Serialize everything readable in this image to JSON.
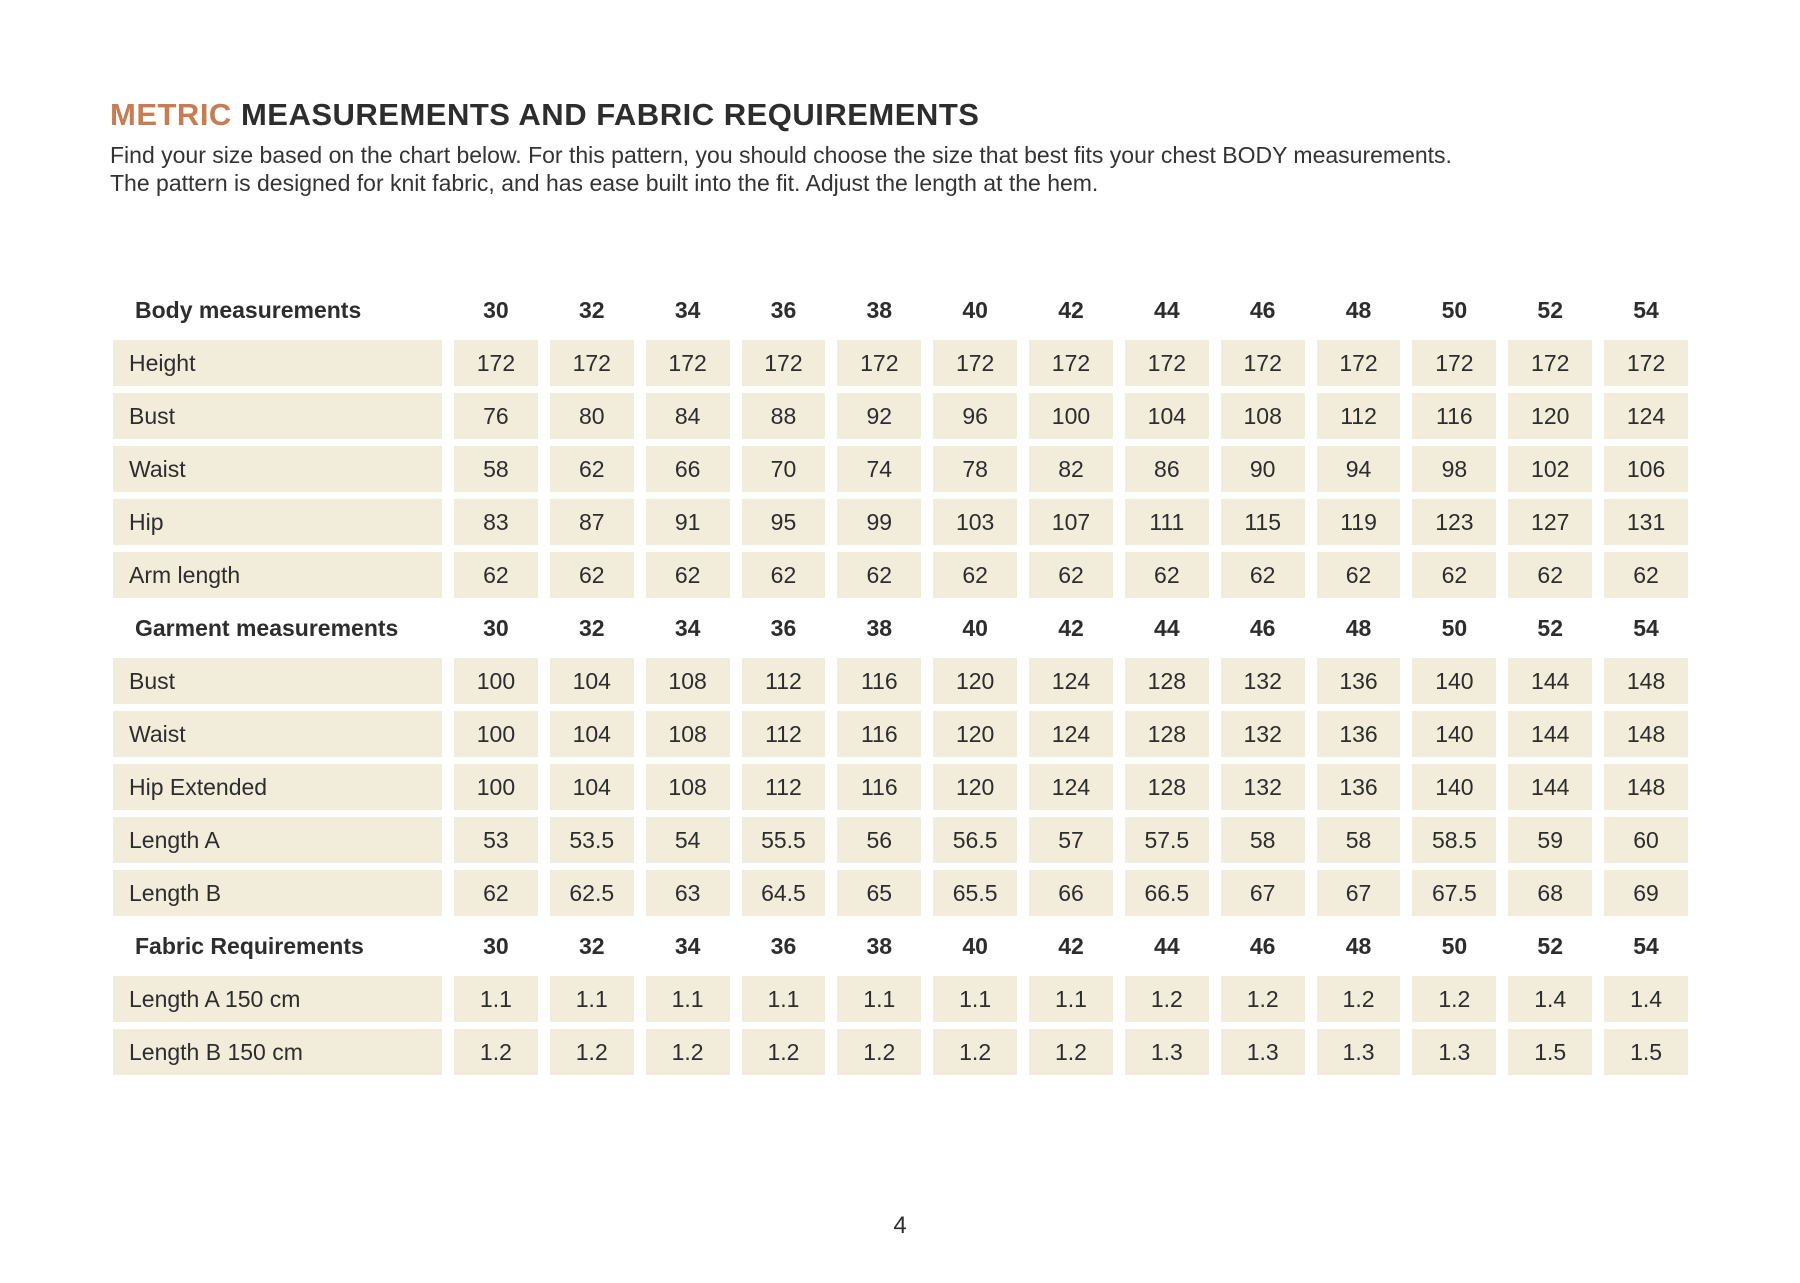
{
  "header": {
    "title_highlight": "METRIC",
    "title_rest": " MEASUREMENTS AND FABRIC REQUIREMENTS",
    "intro_line1": "Find your size based on the chart below. For this pattern, you should choose the size that best fits your chest BODY measurements.",
    "intro_line2": "The pattern is designed for knit fabric, and has ease built into the fit.  Adjust the length at the hem."
  },
  "colors": {
    "accent": "#c97b51",
    "cell_bg": "#f2ecda",
    "text": "#2d2d2d",
    "page_bg": "#ffffff"
  },
  "table": {
    "sizes": [
      "30",
      "32",
      "34",
      "36",
      "38",
      "40",
      "42",
      "44",
      "46",
      "48",
      "50",
      "52",
      "54"
    ],
    "sections": [
      {
        "header": "Body measurements",
        "rows": [
          {
            "label": "Height",
            "values": [
              "172",
              "172",
              "172",
              "172",
              "172",
              "172",
              "172",
              "172",
              "172",
              "172",
              "172",
              "172",
              "172"
            ]
          },
          {
            "label": "Bust",
            "values": [
              "76",
              "80",
              "84",
              "88",
              "92",
              "96",
              "100",
              "104",
              "108",
              "112",
              "116",
              "120",
              "124"
            ]
          },
          {
            "label": "Waist",
            "values": [
              "58",
              "62",
              "66",
              "70",
              "74",
              "78",
              "82",
              "86",
              "90",
              "94",
              "98",
              "102",
              "106"
            ]
          },
          {
            "label": "Hip",
            "values": [
              "83",
              "87",
              "91",
              "95",
              "99",
              "103",
              "107",
              "111",
              "115",
              "119",
              "123",
              "127",
              "131"
            ]
          },
          {
            "label": "Arm length",
            "values": [
              "62",
              "62",
              "62",
              "62",
              "62",
              "62",
              "62",
              "62",
              "62",
              "62",
              "62",
              "62",
              "62"
            ]
          }
        ]
      },
      {
        "header": "Garment measurements",
        "rows": [
          {
            "label": "Bust",
            "values": [
              "100",
              "104",
              "108",
              "112",
              "116",
              "120",
              "124",
              "128",
              "132",
              "136",
              "140",
              "144",
              "148"
            ]
          },
          {
            "label": "Waist",
            "values": [
              "100",
              "104",
              "108",
              "112",
              "116",
              "120",
              "124",
              "128",
              "132",
              "136",
              "140",
              "144",
              "148"
            ]
          },
          {
            "label": "Hip Extended",
            "values": [
              "100",
              "104",
              "108",
              "112",
              "116",
              "120",
              "124",
              "128",
              "132",
              "136",
              "140",
              "144",
              "148"
            ]
          },
          {
            "label": "Length A",
            "values": [
              "53",
              "53.5",
              "54",
              "55.5",
              "56",
              "56.5",
              "57",
              "57.5",
              "58",
              "58",
              "58.5",
              "59",
              "60"
            ]
          },
          {
            "label": "Length B",
            "values": [
              "62",
              "62.5",
              "63",
              "64.5",
              "65",
              "65.5",
              "66",
              "66.5",
              "67",
              "67",
              "67.5",
              "68",
              "69"
            ]
          }
        ]
      },
      {
        "header": "Fabric Requirements",
        "rows": [
          {
            "label": "Length A 150 cm",
            "values": [
              "1.1",
              "1.1",
              "1.1",
              "1.1",
              "1.1",
              "1.1",
              "1.1",
              "1.2",
              "1.2",
              "1.2",
              "1.2",
              "1.4",
              "1.4"
            ]
          },
          {
            "label": "Length B 150 cm",
            "values": [
              "1.2",
              "1.2",
              "1.2",
              "1.2",
              "1.2",
              "1.2",
              "1.2",
              "1.3",
              "1.3",
              "1.3",
              "1.3",
              "1.5",
              "1.5"
            ]
          }
        ]
      }
    ]
  },
  "footer": {
    "page_number": "4"
  }
}
